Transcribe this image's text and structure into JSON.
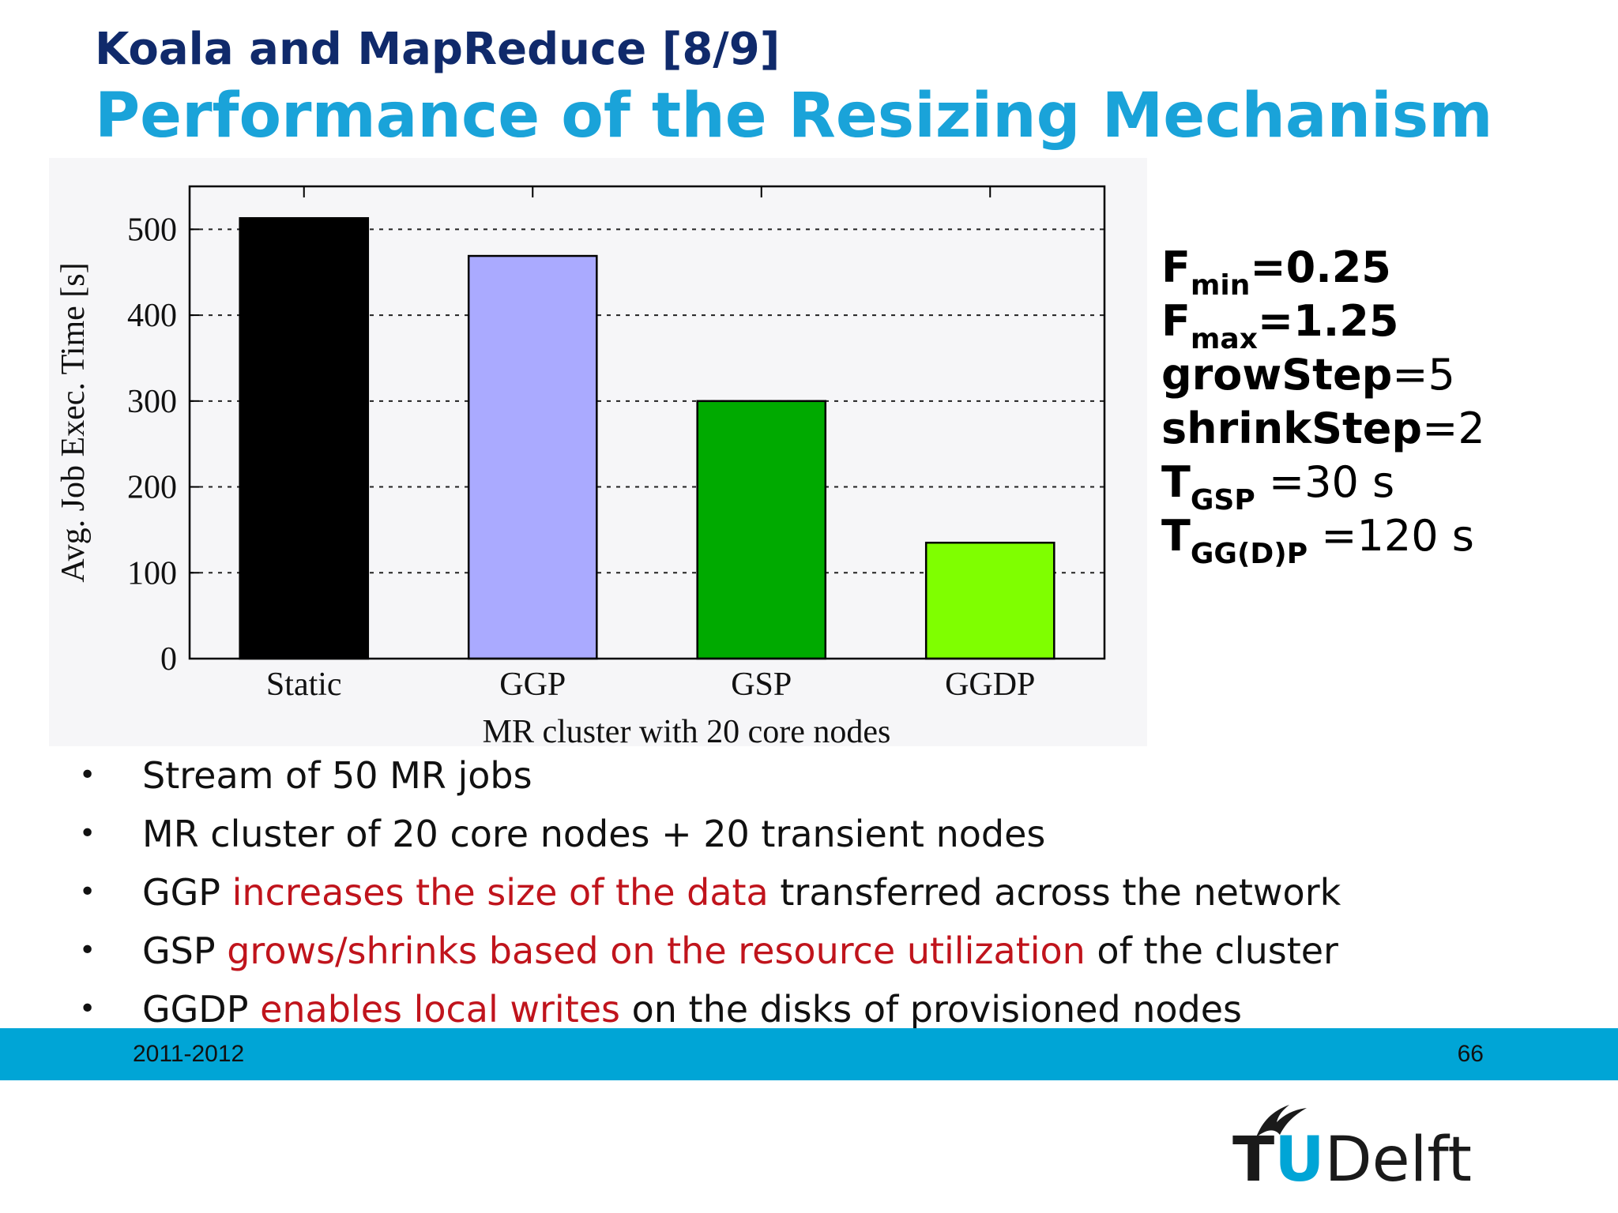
{
  "heading": {
    "top": "Koala and MapReduce [8/9]",
    "main": "Performance of the Resizing Mechanism"
  },
  "chart_data": {
    "type": "bar",
    "categories": [
      "Static",
      "GGP",
      "GSP",
      "GGDP"
    ],
    "values": [
      513,
      469,
      300,
      135
    ],
    "bar_colors": [
      "#000000",
      "#aaaaff",
      "#00aa00",
      "#7fff00"
    ],
    "xlabel": "MR cluster with 20 core nodes",
    "ylabel": "Avg. Job Exec. Time [s]",
    "ylim": [
      0,
      550
    ],
    "yticks": [
      0,
      100,
      200,
      300,
      400,
      500
    ],
    "grid": "horizontal dotted",
    "legend": "none"
  },
  "params": [
    {
      "main": "F",
      "sub": "min",
      "rest_bold": "=0.25",
      "rest": ""
    },
    {
      "main": "F",
      "sub": "max",
      "rest_bold": "=1.25",
      "rest": ""
    },
    {
      "main": "growStep",
      "sub": "",
      "rest_bold": "",
      "rest": "=5"
    },
    {
      "main": "shrinkStep",
      "sub": "",
      "rest_bold": "",
      "rest": "=2"
    },
    {
      "main": "T",
      "sub": "GSP",
      "rest_bold": "",
      "rest": " =30 s"
    },
    {
      "main": "T",
      "sub": "GG(D)P",
      "rest_bold": "",
      "rest": " =120 s"
    }
  ],
  "bullets": [
    {
      "pre": "Stream of 50 MR jobs",
      "red": "",
      "post": ""
    },
    {
      "pre": "MR cluster of 20 core nodes + 20 transient nodes",
      "red": "",
      "post": ""
    },
    {
      "pre": "GGP ",
      "red": "increases the size of the data",
      "post": " transferred across the network"
    },
    {
      "pre": "GSP ",
      "red": "grows/shrinks based on the resource utilization",
      "post": " of the cluster"
    },
    {
      "pre": "GGDP ",
      "red": "enables local writes",
      "post": " on the disks of provisioned nodes"
    }
  ],
  "bullet_symbol": "•",
  "footer": {
    "year": "2011-2012",
    "page": "66",
    "bar_color": "#00a5d6"
  },
  "logo": {
    "t": "T",
    "u": "U",
    "rest": "Delft",
    "icon": "flame-icon"
  }
}
